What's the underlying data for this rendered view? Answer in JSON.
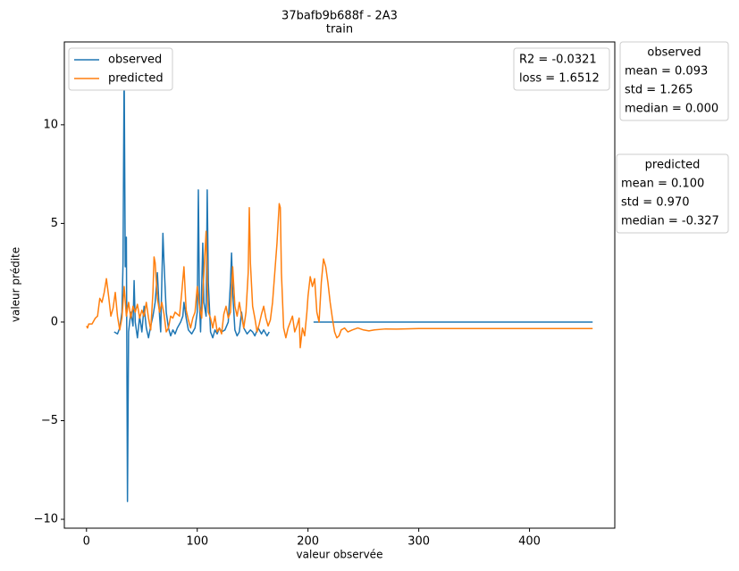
{
  "chart_data": {
    "type": "line",
    "title": "37bafb9b688f - 2A3",
    "subtitle": "train",
    "xlabel": "valeur observée",
    "ylabel": "valeur prédite",
    "xlim": [
      -20,
      477
    ],
    "ylim": [
      -10.45,
      14.2
    ],
    "xticks": [
      0,
      100,
      200,
      300,
      400
    ],
    "yticks": [
      {
        "value": -10,
        "label": "−10"
      },
      {
        "value": -5,
        "label": "−5"
      },
      0,
      5,
      10
    ],
    "legend": "upper left",
    "annotations": [
      "R2 = -0.0321",
      "loss = 1.6512"
    ],
    "stats_boxes": [
      {
        "title": "observed",
        "lines": [
          "mean = 0.093",
          "std = 1.265",
          "median = 0.000"
        ]
      },
      {
        "title": "predicted",
        "lines": [
          "mean = 0.100",
          "std = 0.970",
          "median = -0.327"
        ]
      }
    ],
    "series": [
      {
        "name": "observed",
        "color": "#1f77b4",
        "x": [
          25,
          28,
          30,
          32,
          33,
          34,
          35,
          36,
          37,
          38,
          40,
          42,
          43,
          44,
          46,
          48,
          50,
          52,
          54,
          56,
          58,
          60,
          62,
          64,
          66,
          67,
          69,
          70,
          72,
          74,
          76,
          78,
          80,
          82,
          85,
          87,
          88,
          90,
          92,
          95,
          98,
          100,
          101,
          102,
          103,
          105,
          106,
          108,
          109,
          110,
          112,
          114,
          116,
          118,
          120,
          122,
          125,
          128,
          130,
          131,
          132,
          134,
          136,
          138,
          140,
          142,
          145,
          148,
          150,
          152,
          155,
          158,
          160,
          163,
          165,
          185,
          205,
          457
        ],
        "values": [
          -0.5,
          -0.6,
          -0.3,
          0.5,
          3,
          13.0,
          2.8,
          4.3,
          -9.1,
          -0.5,
          0.5,
          -0.2,
          2.1,
          0,
          -0.8,
          0.3,
          -0.5,
          0.8,
          -0.3,
          -0.8,
          -0.2,
          0.3,
          1.0,
          2.5,
          0.3,
          -0.5,
          4.5,
          3.0,
          0.5,
          -0.3,
          -0.7,
          -0.4,
          -0.6,
          -0.3,
          0,
          0.3,
          1.0,
          0.2,
          -0.4,
          -0.6,
          -0.3,
          0.5,
          6.7,
          1.0,
          -0.5,
          4.0,
          1.0,
          0.3,
          6.7,
          2.0,
          -0.5,
          -0.8,
          -0.4,
          -0.6,
          -0.3,
          -0.5,
          -0.4,
          0,
          2.0,
          3.5,
          1.5,
          -0.4,
          -0.7,
          -0.5,
          0.5,
          -0.3,
          -0.6,
          -0.4,
          -0.5,
          -0.7,
          -0.3,
          -0.6,
          -0.4,
          -0.7,
          -0.5,
          null,
          0,
          0
        ]
      },
      {
        "name": "predicted",
        "color": "#ff7f0e",
        "x": [
          0,
          1,
          2,
          5,
          8,
          10,
          12,
          14,
          16,
          18,
          20,
          22,
          24,
          26,
          28,
          30,
          32,
          34,
          36,
          38,
          40,
          42,
          44,
          46,
          48,
          50,
          52,
          54,
          56,
          58,
          60,
          61,
          62,
          64,
          66,
          68,
          70,
          72,
          74,
          76,
          78,
          80,
          84,
          86,
          88,
          90,
          92,
          94,
          96,
          98,
          100,
          102,
          104,
          106,
          108,
          109,
          110,
          112,
          114,
          116,
          118,
          120,
          122,
          124,
          126,
          128,
          130,
          132,
          134,
          136,
          138,
          140,
          142,
          144,
          146,
          147,
          148,
          150,
          152,
          154,
          156,
          158,
          160,
          162,
          164,
          166,
          168,
          170,
          172,
          174,
          175,
          176,
          178,
          180,
          182,
          184,
          186,
          188,
          190,
          192,
          193,
          195,
          197,
          199,
          200,
          202,
          204,
          206,
          208,
          210,
          212,
          214,
          216,
          218,
          220,
          222,
          224,
          226,
          228,
          230,
          233,
          236,
          240,
          245,
          250,
          255,
          260,
          270,
          280,
          300,
          350,
          457
        ],
        "values": [
          -0.2,
          -0.3,
          -0.1,
          -0.1,
          0.2,
          0.3,
          1.2,
          1.0,
          1.5,
          2.2,
          1.3,
          0.3,
          0.7,
          1.5,
          0.3,
          -0.4,
          0.2,
          1.8,
          0.3,
          1.0,
          0.2,
          0.8,
          0.5,
          0.9,
          0.2,
          0.6,
          0.3,
          1.0,
          0.2,
          -0.4,
          1.5,
          3.3,
          3.0,
          1.2,
          0.5,
          1.0,
          0.4,
          -0.5,
          -0.3,
          0.3,
          0.2,
          0.5,
          0.3,
          1.5,
          2.8,
          0.6,
          0.1,
          -0.3,
          0.2,
          0.5,
          1.8,
          0.8,
          0.2,
          2.5,
          4.6,
          2.0,
          0.5,
          0.2,
          -0.3,
          0.3,
          -0.5,
          -0.3,
          -0.6,
          0.4,
          0.8,
          0.2,
          0.5,
          2.8,
          0.8,
          0.3,
          1.0,
          0.3,
          -0.3,
          0.5,
          2.5,
          5.8,
          3.0,
          0.8,
          0.2,
          -0.5,
          -0.1,
          0.4,
          0.8,
          0.2,
          -0.2,
          0.1,
          1.0,
          2.5,
          4.0,
          6.0,
          5.8,
          2.5,
          -0.3,
          -0.8,
          -0.3,
          0.0,
          0.3,
          -0.5,
          -0.2,
          0.2,
          -1.3,
          -0.3,
          -0.7,
          0.5,
          1.3,
          2.3,
          1.8,
          2.2,
          0.5,
          0,
          2.0,
          3.2,
          2.8,
          2.0,
          1.0,
          0.2,
          -0.5,
          -0.8,
          -0.7,
          -0.4,
          -0.3,
          -0.5,
          -0.4,
          -0.3,
          -0.4,
          -0.45,
          -0.4,
          -0.35,
          -0.36,
          -0.33,
          -0.33,
          -0.33
        ]
      }
    ]
  }
}
